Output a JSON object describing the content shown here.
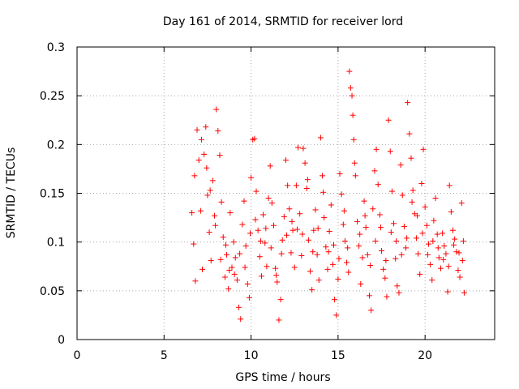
{
  "chart_data": {
    "type": "scatter",
    "title": "Day 161 of 2014, SRMTID for receiver lord",
    "xlabel": "GPS time / hours",
    "ylabel": "SRMTID / TECUs",
    "xlim": [
      0,
      24
    ],
    "ylim": [
      0,
      0.3
    ],
    "xticks": [
      0,
      5,
      10,
      15,
      20
    ],
    "xtick_labels": [
      "0",
      "5",
      "10",
      "15",
      "20"
    ],
    "yticks": [
      0,
      0.05,
      0.1,
      0.15,
      0.2,
      0.25,
      0.3
    ],
    "ytick_labels": [
      "0",
      "0.05",
      "0.1",
      "0.15",
      "0.2",
      "0.25",
      "0.3"
    ],
    "grid": true,
    "legend": "none",
    "marker": "plus",
    "color": "#ff0000",
    "series": [
      {
        "name": "SRMTID",
        "points": [
          [
            6.6,
            0.13
          ],
          [
            6.7,
            0.098
          ],
          [
            6.8,
            0.06
          ],
          [
            6.9,
            0.215
          ],
          [
            7.0,
            0.184
          ],
          [
            7.1,
            0.132
          ],
          [
            7.2,
            0.072
          ],
          [
            7.3,
            0.19
          ],
          [
            7.4,
            0.218
          ],
          [
            7.5,
            0.148
          ],
          [
            7.6,
            0.11
          ],
          [
            7.7,
            0.081
          ],
          [
            7.8,
            0.163
          ],
          [
            7.9,
            0.127
          ],
          [
            8.0,
            0.236
          ],
          [
            8.1,
            0.214
          ],
          [
            8.2,
            0.189
          ],
          [
            8.3,
            0.141
          ],
          [
            8.4,
            0.105
          ],
          [
            8.5,
            0.064
          ],
          [
            8.6,
            0.087
          ],
          [
            8.7,
            0.052
          ],
          [
            8.8,
            0.13
          ],
          [
            8.9,
            0.074
          ],
          [
            9.0,
            0.1
          ],
          [
            9.1,
            0.084
          ],
          [
            9.2,
            0.061
          ],
          [
            9.3,
            0.033
          ],
          [
            9.4,
            0.021
          ],
          [
            9.5,
            0.118
          ],
          [
            9.6,
            0.142
          ],
          [
            9.7,
            0.096
          ],
          [
            9.8,
            0.057
          ],
          [
            9.9,
            0.043
          ],
          [
            10.0,
            0.166
          ],
          [
            10.1,
            0.205
          ],
          [
            10.2,
            0.206
          ],
          [
            10.3,
            0.152
          ],
          [
            10.4,
            0.112
          ],
          [
            10.5,
            0.085
          ],
          [
            10.6,
            0.065
          ],
          [
            10.7,
            0.128
          ],
          [
            10.8,
            0.099
          ],
          [
            10.9,
            0.075
          ],
          [
            11.0,
            0.145
          ],
          [
            11.1,
            0.178
          ],
          [
            11.2,
            0.14
          ],
          [
            11.3,
            0.117
          ],
          [
            11.4,
            0.073
          ],
          [
            11.5,
            0.059
          ],
          [
            11.6,
            0.02
          ],
          [
            11.7,
            0.041
          ],
          [
            11.8,
            0.102
          ],
          [
            11.9,
            0.126
          ],
          [
            12.0,
            0.184
          ],
          [
            12.1,
            0.158
          ],
          [
            12.2,
            0.134
          ],
          [
            12.3,
            0.089
          ],
          [
            12.4,
            0.112
          ],
          [
            12.5,
            0.074
          ],
          [
            12.6,
            0.158
          ],
          [
            12.7,
            0.197
          ],
          [
            12.8,
            0.129
          ],
          [
            12.9,
            0.086
          ],
          [
            13.0,
            0.196
          ],
          [
            13.1,
            0.181
          ],
          [
            13.2,
            0.155
          ],
          [
            13.3,
            0.102
          ],
          [
            13.4,
            0.07
          ],
          [
            13.5,
            0.051
          ],
          [
            13.6,
            0.112
          ],
          [
            13.7,
            0.133
          ],
          [
            13.8,
            0.087
          ],
          [
            13.9,
            0.061
          ],
          [
            14.0,
            0.207
          ],
          [
            14.1,
            0.168
          ],
          [
            14.2,
            0.125
          ],
          [
            14.3,
            0.095
          ],
          [
            14.4,
            0.072
          ],
          [
            14.5,
            0.111
          ],
          [
            14.6,
            0.138
          ],
          [
            14.7,
            0.077
          ],
          [
            14.8,
            0.041
          ],
          [
            14.9,
            0.025
          ],
          [
            15.0,
            0.062
          ],
          [
            15.1,
            0.17
          ],
          [
            15.2,
            0.149
          ],
          [
            15.3,
            0.118
          ],
          [
            15.4,
            0.101
          ],
          [
            15.5,
            0.079
          ],
          [
            15.6,
            0.069
          ],
          [
            15.65,
            0.275
          ],
          [
            15.72,
            0.258
          ],
          [
            15.8,
            0.25
          ],
          [
            15.85,
            0.23
          ],
          [
            15.9,
            0.205
          ],
          [
            16.0,
            0.168
          ],
          [
            16.1,
            0.121
          ],
          [
            16.2,
            0.096
          ],
          [
            16.3,
            0.057
          ],
          [
            16.4,
            0.084
          ],
          [
            16.5,
            0.142
          ],
          [
            16.6,
            0.115
          ],
          [
            16.7,
            0.087
          ],
          [
            16.8,
            0.045
          ],
          [
            16.9,
            0.03
          ],
          [
            17.0,
            0.134
          ],
          [
            17.1,
            0.173
          ],
          [
            17.2,
            0.195
          ],
          [
            17.3,
            0.159
          ],
          [
            17.4,
            0.128
          ],
          [
            17.5,
            0.091
          ],
          [
            17.6,
            0.072
          ],
          [
            17.7,
            0.063
          ],
          [
            17.8,
            0.044
          ],
          [
            17.9,
            0.225
          ],
          [
            18.0,
            0.193
          ],
          [
            18.1,
            0.152
          ],
          [
            18.2,
            0.119
          ],
          [
            18.3,
            0.083
          ],
          [
            18.4,
            0.055
          ],
          [
            18.5,
            0.048
          ],
          [
            18.6,
            0.179
          ],
          [
            18.7,
            0.148
          ],
          [
            18.8,
            0.116
          ],
          [
            18.9,
            0.094
          ],
          [
            19.0,
            0.243
          ],
          [
            19.1,
            0.211
          ],
          [
            19.2,
            0.186
          ],
          [
            19.3,
            0.153
          ],
          [
            19.4,
            0.129
          ],
          [
            19.5,
            0.104
          ],
          [
            19.6,
            0.088
          ],
          [
            19.7,
            0.067
          ],
          [
            19.8,
            0.16
          ],
          [
            19.9,
            0.195
          ],
          [
            20.0,
            0.136
          ],
          [
            20.1,
            0.117
          ],
          [
            20.2,
            0.098
          ],
          [
            20.3,
            0.077
          ],
          [
            20.4,
            0.061
          ],
          [
            20.5,
            0.122
          ],
          [
            20.6,
            0.145
          ],
          [
            20.7,
            0.108
          ],
          [
            20.8,
            0.084
          ],
          [
            20.9,
            0.073
          ],
          [
            21.0,
            0.109
          ],
          [
            21.1,
            0.096
          ],
          [
            21.2,
            0.088
          ],
          [
            21.3,
            0.049
          ],
          [
            21.4,
            0.158
          ],
          [
            21.5,
            0.131
          ],
          [
            21.6,
            0.112
          ],
          [
            21.7,
            0.103
          ],
          [
            21.8,
            0.09
          ],
          [
            21.9,
            0.071
          ],
          [
            22.0,
            0.064
          ],
          [
            22.1,
            0.14
          ],
          [
            22.2,
            0.101
          ],
          [
            22.25,
            0.048
          ],
          [
            6.75,
            0.168
          ],
          [
            7.15,
            0.205
          ],
          [
            7.45,
            0.176
          ],
          [
            7.65,
            0.153
          ],
          [
            7.95,
            0.117
          ],
          [
            8.25,
            0.082
          ],
          [
            8.55,
            0.097
          ],
          [
            8.75,
            0.071
          ],
          [
            9.05,
            0.067
          ],
          [
            9.35,
            0.088
          ],
          [
            9.65,
            0.074
          ],
          [
            9.95,
            0.109
          ],
          [
            10.25,
            0.123
          ],
          [
            10.55,
            0.101
          ],
          [
            10.85,
            0.114
          ],
          [
            11.15,
            0.094
          ],
          [
            11.45,
            0.066
          ],
          [
            11.75,
            0.088
          ],
          [
            12.05,
            0.107
          ],
          [
            12.35,
            0.121
          ],
          [
            12.65,
            0.113
          ],
          [
            12.95,
            0.108
          ],
          [
            13.25,
            0.164
          ],
          [
            13.55,
            0.09
          ],
          [
            13.85,
            0.114
          ],
          [
            14.15,
            0.151
          ],
          [
            14.45,
            0.09
          ],
          [
            14.75,
            0.097
          ],
          [
            15.05,
            0.083
          ],
          [
            15.35,
            0.132
          ],
          [
            15.55,
            0.094
          ],
          [
            15.95,
            0.181
          ],
          [
            16.25,
            0.108
          ],
          [
            16.55,
            0.127
          ],
          [
            16.85,
            0.076
          ],
          [
            17.15,
            0.101
          ],
          [
            17.45,
            0.115
          ],
          [
            17.75,
            0.081
          ],
          [
            18.05,
            0.11
          ],
          [
            18.35,
            0.101
          ],
          [
            18.65,
            0.087
          ],
          [
            18.95,
            0.104
          ],
          [
            19.25,
            0.141
          ],
          [
            19.55,
            0.127
          ],
          [
            19.85,
            0.109
          ],
          [
            20.15,
            0.087
          ],
          [
            20.45,
            0.101
          ],
          [
            20.75,
            0.094
          ],
          [
            21.05,
            0.082
          ],
          [
            21.35,
            0.075
          ],
          [
            21.65,
            0.097
          ],
          [
            21.95,
            0.089
          ],
          [
            22.15,
            0.081
          ]
        ]
      }
    ]
  }
}
